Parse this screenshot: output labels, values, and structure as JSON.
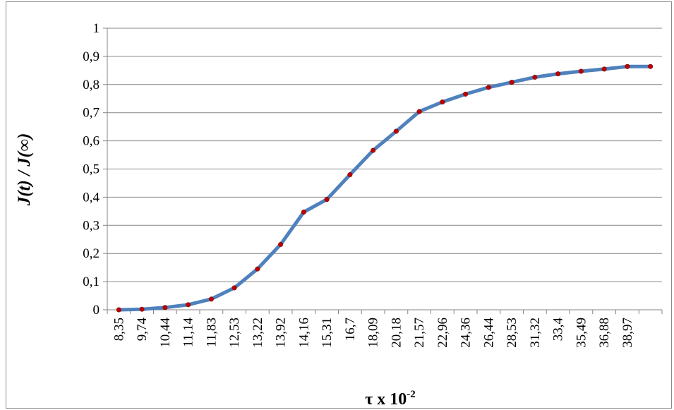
{
  "chart_data": {
    "type": "line",
    "title": "",
    "xlabel": {
      "main": "τ x 10",
      "sup": "-2"
    },
    "ylabel": "J(t) / J(∞)",
    "ylim": [
      0,
      1
    ],
    "yticks": [
      "0",
      "0,1",
      "0,2",
      "0,3",
      "0,4",
      "0,5",
      "0,6",
      "0,7",
      "0,8",
      "0,9",
      "1"
    ],
    "grid": true,
    "legend": "none",
    "categories": [
      "8,35",
      "9,74",
      "10,44",
      "11,14",
      "11,83",
      "12,53",
      "13,22",
      "13,92",
      "14,16",
      "15,31",
      "16,7",
      "18,09",
      "20,18",
      "21,57",
      "22,96",
      "24,36",
      "26,44",
      "28,53",
      "31,32",
      "33,4",
      "35,49",
      "36,88",
      "38,97",
      ""
    ],
    "series": [
      {
        "name": "",
        "values": [
          0.0,
          0.002,
          0.008,
          0.018,
          0.038,
          0.078,
          0.145,
          0.232,
          0.347,
          0.392,
          0.48,
          0.566,
          0.634,
          0.704,
          0.738,
          0.766,
          0.79,
          0.808,
          0.826,
          0.838,
          0.847,
          0.855,
          0.864,
          0.864
        ]
      }
    ],
    "colors": {
      "line": "#4f81bd",
      "marker": "#c00000",
      "grid": "#868686",
      "axis": "#868686"
    }
  }
}
